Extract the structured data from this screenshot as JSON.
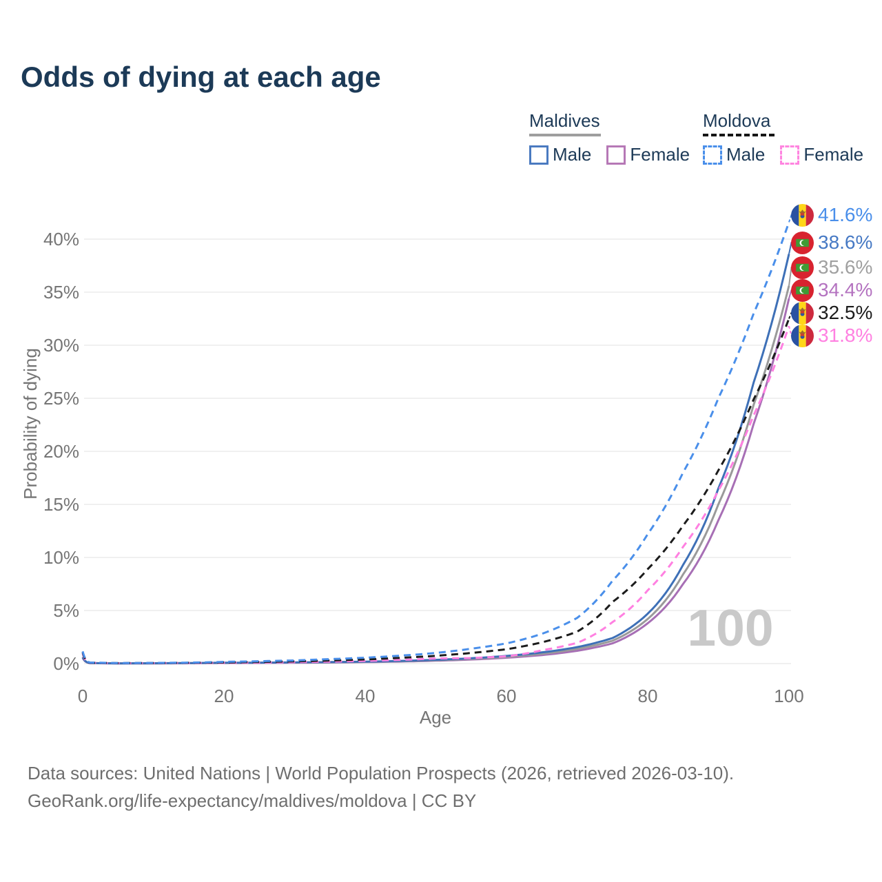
{
  "title": "Odds of dying at each age",
  "legend": {
    "maldives": {
      "label": "Maldives",
      "male": "Male",
      "female": "Female"
    },
    "moldova": {
      "label": "Moldova",
      "male": "Male",
      "female": "Female"
    }
  },
  "axes": {
    "y_title": "Probability of dying",
    "x_title": "Age",
    "y_ticks": [
      "0%",
      "5%",
      "10%",
      "15%",
      "20%",
      "25%",
      "30%",
      "35%",
      "40%"
    ],
    "x_ticks": [
      "0",
      "20",
      "40",
      "60",
      "80",
      "100"
    ]
  },
  "watermark": "100",
  "end_labels": [
    {
      "value": "41.6%",
      "series": "Moldova Male",
      "flag": "moldova-flag-icon",
      "color": "#4a8fea"
    },
    {
      "value": "38.6%",
      "series": "Maldives Male",
      "flag": "maldives-flag-icon",
      "color": "#4679c4"
    },
    {
      "value": "35.6%",
      "series": "Maldives Both sexes",
      "flag": "maldives-flag-icon",
      "color": "#a0a0a0"
    },
    {
      "value": "34.4%",
      "series": "Maldives Female",
      "flag": "maldives-flag-icon",
      "color": "#b473c0"
    },
    {
      "value": "32.5%",
      "series": "Moldova Both sexes",
      "flag": "moldova-flag-icon",
      "color": "#1c1c1c"
    },
    {
      "value": "31.8%",
      "series": "Moldova Female",
      "flag": "moldova-flag-icon",
      "color": "#ff80e1"
    }
  ],
  "footer": {
    "line1": "Data sources: United Nations | World Population Prospects (2026, retrieved 2026-03-10).",
    "line2": "GeoRank.org/life-expectancy/maldives/moldova | CC BY"
  },
  "chart_data": {
    "type": "line",
    "title": "Odds of dying at each age",
    "xlabel": "Age",
    "ylabel": "Probability of dying",
    "xlim": [
      0,
      100
    ],
    "ylim_pct": [
      0,
      42
    ],
    "x_tick_ages": [
      0,
      20,
      40,
      60,
      80,
      100
    ],
    "y_tick_percents": [
      0,
      5,
      10,
      15,
      20,
      25,
      30,
      35,
      40
    ],
    "grid": "horizontal",
    "legend_position": "top-right",
    "ages": [
      0,
      1,
      5,
      10,
      15,
      20,
      25,
      30,
      35,
      40,
      45,
      50,
      55,
      60,
      65,
      70,
      75,
      80,
      85,
      90,
      95,
      100
    ],
    "series": [
      {
        "name": "Maldives Female",
        "country": "Maldives",
        "sex": "Female",
        "style": "solid",
        "color": "#a76fb5",
        "values_pct": [
          0.54,
          0.04,
          0.02,
          0.02,
          0.03,
          0.05,
          0.06,
          0.08,
          0.1,
          0.14,
          0.19,
          0.27,
          0.38,
          0.55,
          0.8,
          1.2,
          1.9,
          3.8,
          7.5,
          13.5,
          22.6,
          34.4
        ],
        "end_label": "34.4%"
      },
      {
        "name": "Maldives Both sexes",
        "country": "Maldives",
        "sex": "Both",
        "style": "solid",
        "color": "#9a9a9a",
        "values_pct": [
          0.58,
          0.05,
          0.02,
          0.02,
          0.04,
          0.06,
          0.08,
          0.1,
          0.12,
          0.16,
          0.22,
          0.31,
          0.44,
          0.63,
          0.92,
          1.38,
          2.15,
          4.2,
          8.4,
          15.0,
          24.4,
          35.6
        ],
        "end_label": "35.6%"
      },
      {
        "name": "Maldives Male",
        "country": "Maldives",
        "sex": "Male",
        "style": "solid",
        "color": "#3e70b7",
        "values_pct": [
          0.62,
          0.05,
          0.02,
          0.03,
          0.05,
          0.08,
          0.09,
          0.11,
          0.14,
          0.18,
          0.25,
          0.35,
          0.5,
          0.72,
          1.05,
          1.55,
          2.4,
          4.7,
          9.3,
          16.5,
          26.5,
          38.6
        ],
        "end_label": "38.6%"
      },
      {
        "name": "Moldova Female",
        "country": "Moldova",
        "sex": "Female",
        "style": "dashed",
        "color": "#ff80e1",
        "values_pct": [
          0.95,
          0.07,
          0.03,
          0.04,
          0.05,
          0.07,
          0.09,
          0.13,
          0.18,
          0.25,
          0.35,
          0.48,
          0.52,
          0.68,
          1.25,
          1.95,
          3.9,
          6.9,
          11.0,
          16.3,
          23.4,
          31.8
        ],
        "end_label": "31.8%"
      },
      {
        "name": "Moldova Both sexes",
        "country": "Moldova",
        "sex": "Both",
        "style": "dashed",
        "color": "#1c1c1c",
        "values_pct": [
          1.05,
          0.08,
          0.04,
          0.05,
          0.07,
          0.11,
          0.15,
          0.21,
          0.29,
          0.39,
          0.54,
          0.73,
          1.0,
          1.35,
          2.0,
          3.0,
          5.8,
          8.9,
          13.0,
          18.2,
          24.9,
          32.5
        ],
        "end_label": "32.5%"
      },
      {
        "name": "Moldova Male",
        "country": "Moldova",
        "sex": "Male",
        "style": "dashed",
        "color": "#4a8fea",
        "values_pct": [
          1.15,
          0.1,
          0.05,
          0.06,
          0.09,
          0.16,
          0.22,
          0.3,
          0.42,
          0.55,
          0.75,
          1.0,
          1.4,
          1.9,
          2.8,
          4.3,
          7.8,
          12.2,
          18.0,
          25.0,
          33.0,
          41.6
        ],
        "end_label": "41.6%"
      }
    ]
  }
}
